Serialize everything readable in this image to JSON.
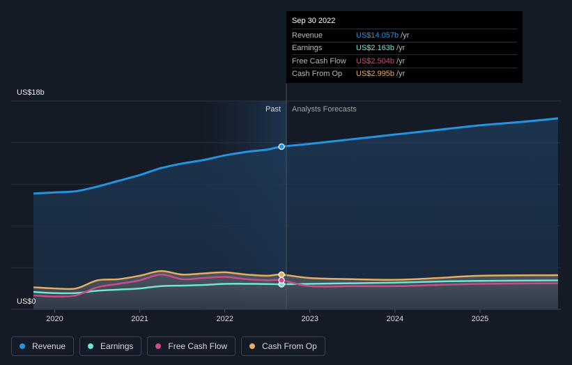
{
  "chart_data": {
    "type": "line",
    "y_axis": {
      "top_label": "US$18b",
      "bottom_label": "US$0",
      "ylim": [
        0,
        18
      ]
    },
    "x_ticks": [
      "2020",
      "2021",
      "2022",
      "2023",
      "2024",
      "2025"
    ],
    "period_labels": {
      "past": "Past",
      "forecast": "Analysts Forecasts"
    },
    "series": [
      {
        "name": "Revenue",
        "color": "#2394df",
        "points": [
          [
            "2019-10",
            10.0
          ],
          [
            "2020-01",
            10.1
          ],
          [
            "2020-04",
            10.2
          ],
          [
            "2020-07",
            10.6
          ],
          [
            "2020-10",
            11.1
          ],
          [
            "2021-01",
            11.6
          ],
          [
            "2021-04",
            12.2
          ],
          [
            "2021-07",
            12.6
          ],
          [
            "2021-10",
            12.9
          ],
          [
            "2022-01",
            13.3
          ],
          [
            "2022-04",
            13.6
          ],
          [
            "2022-07",
            13.8
          ],
          [
            "2022-09",
            14.057
          ],
          [
            "2023-01",
            14.3
          ],
          [
            "2023-07",
            14.7
          ],
          [
            "2024-01",
            15.1
          ],
          [
            "2024-07",
            15.5
          ],
          [
            "2025-01",
            15.9
          ],
          [
            "2025-07",
            16.2
          ],
          [
            "2025-12",
            16.5
          ]
        ]
      },
      {
        "name": "Earnings",
        "color": "#6ee7d0",
        "points": [
          [
            "2019-10",
            1.5
          ],
          [
            "2020-01",
            1.4
          ],
          [
            "2020-04",
            1.4
          ],
          [
            "2020-07",
            1.6
          ],
          [
            "2020-10",
            1.7
          ],
          [
            "2021-01",
            1.8
          ],
          [
            "2021-04",
            2.0
          ],
          [
            "2021-07",
            2.05
          ],
          [
            "2021-10",
            2.1
          ],
          [
            "2022-01",
            2.2
          ],
          [
            "2022-04",
            2.2
          ],
          [
            "2022-07",
            2.18
          ],
          [
            "2022-09",
            2.163
          ],
          [
            "2023-01",
            2.2
          ],
          [
            "2023-07",
            2.25
          ],
          [
            "2024-01",
            2.3
          ],
          [
            "2024-07",
            2.4
          ],
          [
            "2025-01",
            2.45
          ],
          [
            "2025-12",
            2.5
          ]
        ]
      },
      {
        "name": "Free Cash Flow",
        "color": "#c94d87",
        "points": [
          [
            "2019-10",
            1.2
          ],
          [
            "2020-01",
            1.1
          ],
          [
            "2020-04",
            1.2
          ],
          [
            "2020-07",
            1.9
          ],
          [
            "2020-10",
            2.2
          ],
          [
            "2021-01",
            2.5
          ],
          [
            "2021-04",
            3.0
          ],
          [
            "2021-07",
            2.6
          ],
          [
            "2021-10",
            2.7
          ],
          [
            "2022-01",
            2.8
          ],
          [
            "2022-04",
            2.6
          ],
          [
            "2022-07",
            2.5
          ],
          [
            "2022-09",
            2.504
          ],
          [
            "2023-01",
            2.0
          ],
          [
            "2023-07",
            2.0
          ],
          [
            "2024-01",
            2.0
          ],
          [
            "2024-07",
            2.1
          ],
          [
            "2025-01",
            2.2
          ],
          [
            "2025-12",
            2.25
          ]
        ]
      },
      {
        "name": "Cash From Op",
        "color": "#e8ad5d",
        "points": [
          [
            "2019-10",
            1.9
          ],
          [
            "2020-01",
            1.8
          ],
          [
            "2020-04",
            1.8
          ],
          [
            "2020-07",
            2.5
          ],
          [
            "2020-10",
            2.6
          ],
          [
            "2021-01",
            2.9
          ],
          [
            "2021-04",
            3.3
          ],
          [
            "2021-07",
            3.0
          ],
          [
            "2021-10",
            3.1
          ],
          [
            "2022-01",
            3.2
          ],
          [
            "2022-04",
            3.0
          ],
          [
            "2022-07",
            2.9
          ],
          [
            "2022-09",
            2.995
          ],
          [
            "2023-01",
            2.7
          ],
          [
            "2023-07",
            2.6
          ],
          [
            "2024-01",
            2.55
          ],
          [
            "2024-07",
            2.7
          ],
          [
            "2025-01",
            2.9
          ],
          [
            "2025-12",
            2.95
          ]
        ]
      }
    ],
    "divider_date": "2022-09",
    "legend_position": "bottom-left"
  },
  "tooltip": {
    "date": "Sep 30 2022",
    "rows": [
      {
        "name": "Revenue",
        "value": "US$14.057b",
        "unit": "/yr",
        "color": "#2394df"
      },
      {
        "name": "Earnings",
        "value": "US$2.163b",
        "unit": "/yr",
        "color": "#6ee7d0"
      },
      {
        "name": "Free Cash Flow",
        "value": "US$2.504b",
        "unit": "/yr",
        "color": "#c94d87"
      },
      {
        "name": "Cash From Op",
        "value": "US$2.995b",
        "unit": "/yr",
        "color": "#e8ad5d"
      }
    ]
  },
  "legend": [
    {
      "label": "Revenue",
      "color": "#2394df"
    },
    {
      "label": "Earnings",
      "color": "#6ee7d0"
    },
    {
      "label": "Free Cash Flow",
      "color": "#c94d87"
    },
    {
      "label": "Cash From Op",
      "color": "#e8ad5d"
    }
  ]
}
